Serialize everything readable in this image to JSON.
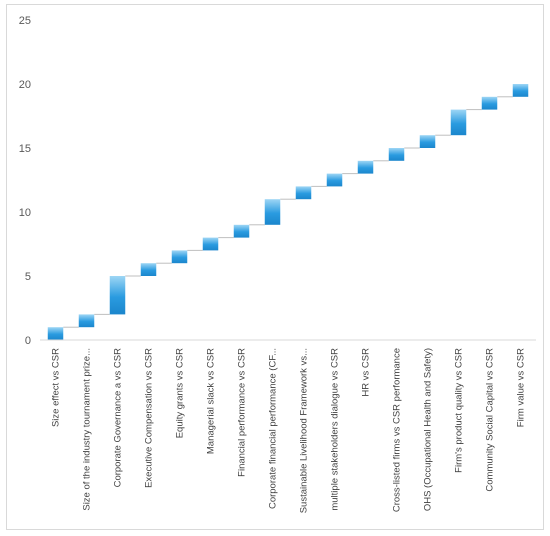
{
  "chart_data": {
    "type": "bar",
    "subtype": "waterfall",
    "title": "",
    "xlabel": "",
    "ylabel": "",
    "ylim": [
      0,
      25
    ],
    "yticks": [
      0,
      5,
      10,
      15,
      20,
      25
    ],
    "grid": false,
    "legend": "none",
    "colors": {
      "bar_top": "#9ed6f5",
      "bar_bottom": "#1f8fd6",
      "axis": "#d9d9d9",
      "connector": "#bfbfbf"
    },
    "categories": [
      "Size effect vs CSR",
      "Size of the industry tournament prize...",
      "Corporate Governance a vs CSR",
      "Executive Compensation vs CSR",
      "Equity grants vs CSR",
      "Managerial slack vs CSR",
      "Financial performance vs CSR",
      "Corporate financial performance (CF...",
      "Sustainable Livelihood Framework  vs...",
      "multiple stakeholders dialogue vs CSR",
      "HR vs CSR",
      "Cross-listed firms vs CSR performance",
      "OHS (Occupational Health and Safety)",
      "Firm's product quality vs CSR",
      "Community Social Capital  vs CSR",
      "Firm value vs CSR"
    ],
    "base": [
      0,
      1,
      2,
      5,
      6,
      7,
      8,
      9,
      11,
      12,
      13,
      14,
      15,
      16,
      18,
      19
    ],
    "values": [
      1,
      1,
      3,
      1,
      1,
      1,
      1,
      2,
      1,
      1,
      1,
      1,
      1,
      2,
      1,
      1
    ]
  }
}
